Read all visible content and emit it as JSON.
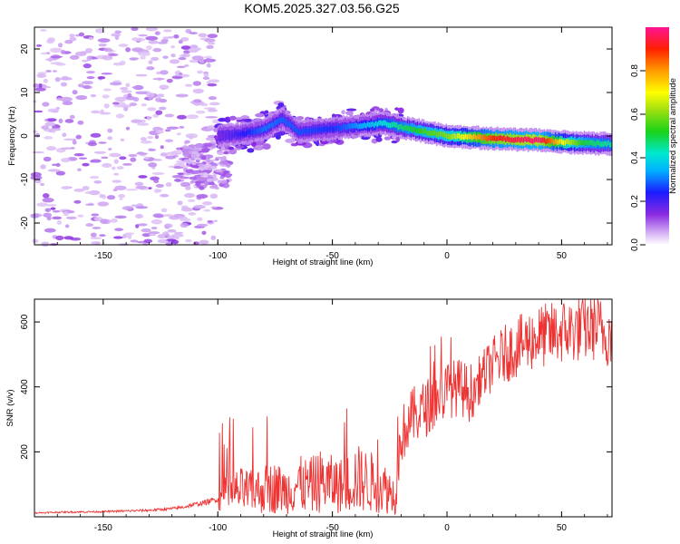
{
  "title": "KOM5.2025.327.03.56.G25",
  "chart_data": [
    {
      "type": "heatmap",
      "xlabel": "Height of straight line (km)",
      "ylabel": "Frequency (Hz)",
      "xlim": [
        -180,
        72
      ],
      "ylim": [
        -25,
        25
      ],
      "xticks": [
        -150,
        -100,
        -50,
        0,
        50
      ],
      "yticks": [
        -20,
        -10,
        0,
        10,
        20
      ],
      "colorbar": {
        "label": "Normalized spectral amplitude",
        "range": [
          0,
          1
        ],
        "ticks": [
          "0.0",
          "0.2",
          "0.4",
          "0.6",
          "0.8"
        ]
      },
      "ridge": {
        "description_values_hz": [
          [
            -100,
            0
          ],
          [
            -90,
            0.5
          ],
          [
            -80,
            1.5
          ],
          [
            -72,
            4
          ],
          [
            -65,
            1
          ],
          [
            -55,
            1.5
          ],
          [
            -45,
            2
          ],
          [
            -35,
            2.5
          ],
          [
            -28,
            3
          ],
          [
            -20,
            2
          ],
          [
            -10,
            1
          ],
          [
            0,
            0
          ],
          [
            10,
            -0.3
          ],
          [
            20,
            -0.6
          ],
          [
            30,
            -0.8
          ],
          [
            40,
            -1
          ],
          [
            50,
            -1.4
          ],
          [
            60,
            -1.6
          ],
          [
            70,
            -1.8
          ]
        ],
        "peak_amplitude_by_height": [
          [
            -100,
            0.15
          ],
          [
            -80,
            0.3
          ],
          [
            -50,
            0.25
          ],
          [
            -30,
            0.4
          ],
          [
            -10,
            0.55
          ],
          [
            0,
            0.6
          ],
          [
            10,
            0.75
          ],
          [
            20,
            0.9
          ],
          [
            30,
            0.95
          ],
          [
            40,
            0.98
          ],
          [
            50,
            0.7
          ],
          [
            60,
            0.5
          ],
          [
            70,
            0.45
          ]
        ]
      }
    },
    {
      "type": "line",
      "xlabel": "Height of straight line (km)",
      "ylabel": "SNR (v/v)",
      "xlim": [
        -180,
        72
      ],
      "ylim": [
        0,
        670
      ],
      "xticks": [
        -150,
        -100,
        -50,
        0,
        50
      ],
      "yticks": [
        200,
        400,
        600
      ],
      "series": [
        {
          "name": "SNR",
          "color": "#ee3333",
          "x": [
            -180,
            -170,
            -160,
            -150,
            -140,
            -130,
            -120,
            -115,
            -110,
            -105,
            -100,
            -95,
            -90,
            -85,
            -80,
            -75,
            -70,
            -65,
            -60,
            -55,
            -50,
            -45,
            -40,
            -35,
            -30,
            -25,
            -22,
            -20,
            -15,
            -10,
            -5,
            0,
            5,
            10,
            15,
            20,
            25,
            30,
            35,
            40,
            45,
            50,
            55,
            60,
            65,
            70,
            72
          ],
          "y": [
            12,
            14,
            15,
            16,
            18,
            20,
            25,
            30,
            38,
            45,
            55,
            70,
            80,
            75,
            85,
            90,
            80,
            100,
            95,
            110,
            100,
            95,
            120,
            110,
            100,
            80,
            60,
            250,
            310,
            330,
            360,
            390,
            400,
            380,
            430,
            470,
            500,
            520,
            540,
            555,
            560,
            570,
            575,
            580,
            585,
            560,
            565
          ]
        }
      ]
    }
  ]
}
